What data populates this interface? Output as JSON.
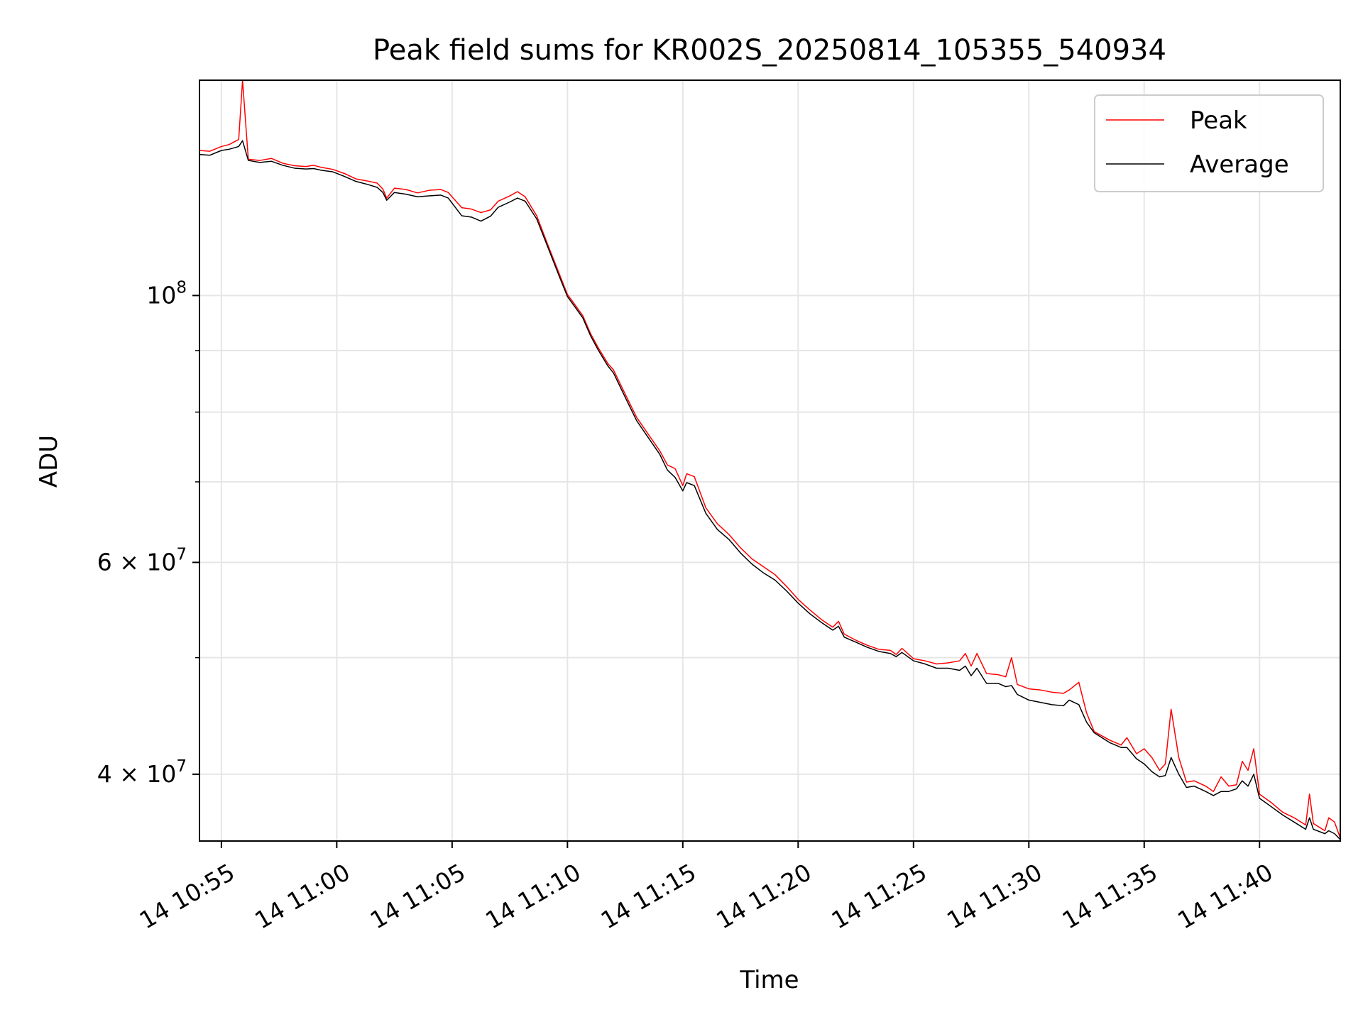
{
  "chart_data": {
    "type": "line",
    "title": "Peak field sums for KR002S_20250814_105355_540934",
    "xlabel": "Time",
    "ylabel": "ADU",
    "y_scale": "log",
    "grid": true,
    "legend_position": "top-right",
    "x_range": [
      "10:54:03",
      "11:43:30"
    ],
    "ylim": [
      35200000,
      151000000
    ],
    "x_ticks": [
      {
        "t": "10:55",
        "label": "14 10:55"
      },
      {
        "t": "11:00",
        "label": "14 11:00"
      },
      {
        "t": "11:05",
        "label": "14 11:05"
      },
      {
        "t": "11:10",
        "label": "14 11:10"
      },
      {
        "t": "11:15",
        "label": "14 11:15"
      },
      {
        "t": "11:20",
        "label": "14 11:20"
      },
      {
        "t": "11:25",
        "label": "14 11:25"
      },
      {
        "t": "11:30",
        "label": "14 11:30"
      },
      {
        "t": "11:35",
        "label": "14 11:35"
      },
      {
        "t": "11:40",
        "label": "14 11:40"
      }
    ],
    "y_ticks": [
      {
        "value": 100000000,
        "base": "10",
        "exp": "8"
      },
      {
        "value": 60000000,
        "mant": "6",
        "base": "10",
        "exp": "7"
      },
      {
        "value": 40000000,
        "mant": "4",
        "base": "10",
        "exp": "7"
      }
    ],
    "y_minor_ticks": [
      50000000,
      70000000,
      80000000,
      90000000
    ],
    "series": [
      {
        "name": "Peak",
        "color": "#ff0000",
        "points": [
          [
            "10:54:03",
            132000000
          ],
          [
            "10:54:30",
            131800000
          ],
          [
            "10:55:00",
            133000000
          ],
          [
            "10:55:20",
            133500000
          ],
          [
            "10:55:45",
            134800000
          ],
          [
            "10:55:55",
            151000000
          ],
          [
            "10:56:10",
            129800000
          ],
          [
            "10:56:40",
            129500000
          ],
          [
            "10:57:10",
            130000000
          ],
          [
            "10:57:40",
            128800000
          ],
          [
            "10:58:10",
            128200000
          ],
          [
            "10:58:40",
            128000000
          ],
          [
            "10:59:00",
            128300000
          ],
          [
            "10:59:20",
            127800000
          ],
          [
            "10:59:50",
            127300000
          ],
          [
            "11:00:20",
            126300000
          ],
          [
            "11:00:50",
            125000000
          ],
          [
            "11:01:20",
            124500000
          ],
          [
            "11:01:45",
            124000000
          ],
          [
            "11:02:00",
            122600000
          ],
          [
            "11:02:10",
            120500000
          ],
          [
            "11:02:30",
            122800000
          ],
          [
            "11:03:00",
            122500000
          ],
          [
            "11:03:30",
            121700000
          ],
          [
            "11:04:00",
            122300000
          ],
          [
            "11:04:30",
            122500000
          ],
          [
            "11:04:50",
            121800000
          ],
          [
            "11:05:10",
            119800000
          ],
          [
            "11:05:25",
            118300000
          ],
          [
            "11:05:50",
            118000000
          ],
          [
            "11:06:15",
            117200000
          ],
          [
            "11:06:40",
            117800000
          ],
          [
            "11:07:00",
            119800000
          ],
          [
            "11:07:30",
            121000000
          ],
          [
            "11:07:50",
            122000000
          ],
          [
            "11:08:10",
            120800000
          ],
          [
            "11:08:40",
            116500000
          ],
          [
            "11:09:10",
            110000000
          ],
          [
            "11:09:40",
            104000000
          ],
          [
            "11:10:00",
            100200000
          ],
          [
            "11:10:20",
            98200000
          ],
          [
            "11:10:40",
            96200000
          ],
          [
            "11:11:00",
            93000000
          ],
          [
            "11:11:20",
            90500000
          ],
          [
            "11:11:45",
            87800000
          ],
          [
            "11:12:00",
            86700000
          ],
          [
            "11:12:20",
            84100000
          ],
          [
            "11:12:40",
            81600000
          ],
          [
            "11:13:00",
            79200000
          ],
          [
            "11:13:30",
            76700000
          ],
          [
            "11:14:00",
            74300000
          ],
          [
            "11:14:20",
            72300000
          ],
          [
            "11:14:40",
            71800000
          ],
          [
            "11:15:00",
            69500000
          ],
          [
            "11:15:10",
            71100000
          ],
          [
            "11:15:30",
            70700000
          ],
          [
            "11:16:00",
            66600000
          ],
          [
            "11:16:30",
            64600000
          ],
          [
            "11:17:00",
            63300000
          ],
          [
            "11:17:30",
            61700000
          ],
          [
            "11:18:00",
            60400000
          ],
          [
            "11:18:30",
            59500000
          ],
          [
            "11:19:00",
            58600000
          ],
          [
            "11:19:30",
            57300000
          ],
          [
            "11:20:00",
            55900000
          ],
          [
            "11:20:30",
            54800000
          ],
          [
            "11:21:00",
            53800000
          ],
          [
            "11:21:30",
            53000000
          ],
          [
            "11:21:45",
            53600000
          ],
          [
            "11:22:00",
            52300000
          ],
          [
            "11:22:30",
            51700000
          ],
          [
            "11:23:00",
            51200000
          ],
          [
            "11:23:30",
            50800000
          ],
          [
            "11:24:00",
            50700000
          ],
          [
            "11:24:15",
            50300000
          ],
          [
            "11:24:30",
            50900000
          ],
          [
            "11:25:00",
            49900000
          ],
          [
            "11:25:30",
            49700000
          ],
          [
            "11:26:00",
            49400000
          ],
          [
            "11:26:30",
            49500000
          ],
          [
            "11:27:00",
            49700000
          ],
          [
            "11:27:15",
            50400000
          ],
          [
            "11:27:30",
            49200000
          ],
          [
            "11:27:45",
            50400000
          ],
          [
            "11:28:10",
            48500000
          ],
          [
            "11:28:40",
            48400000
          ],
          [
            "11:29:00",
            48200000
          ],
          [
            "11:29:15",
            50000000
          ],
          [
            "11:29:30",
            47500000
          ],
          [
            "11:30:00",
            47100000
          ],
          [
            "11:30:30",
            47000000
          ],
          [
            "11:31:00",
            46800000
          ],
          [
            "11:31:30",
            46700000
          ],
          [
            "11:31:45",
            47000000
          ],
          [
            "11:32:10",
            47700000
          ],
          [
            "11:32:30",
            45000000
          ],
          [
            "11:32:50",
            43400000
          ],
          [
            "11:33:30",
            42700000
          ],
          [
            "11:34:00",
            42300000
          ],
          [
            "11:34:15",
            42900000
          ],
          [
            "11:34:40",
            41600000
          ],
          [
            "11:35:00",
            42000000
          ],
          [
            "11:35:20",
            41300000
          ],
          [
            "11:35:40",
            40300000
          ],
          [
            "11:35:55",
            40800000
          ],
          [
            "11:36:10",
            45300000
          ],
          [
            "11:36:30",
            41300000
          ],
          [
            "11:36:50",
            39400000
          ],
          [
            "11:37:10",
            39500000
          ],
          [
            "11:37:40",
            39100000
          ],
          [
            "11:38:00",
            38700000
          ],
          [
            "11:38:20",
            39800000
          ],
          [
            "11:38:40",
            39100000
          ],
          [
            "11:39:00",
            39200000
          ],
          [
            "11:39:15",
            41000000
          ],
          [
            "11:39:30",
            40300000
          ],
          [
            "11:39:45",
            42000000
          ],
          [
            "11:40:00",
            38500000
          ],
          [
            "11:40:30",
            37900000
          ],
          [
            "11:41:00",
            37200000
          ],
          [
            "11:41:30",
            36800000
          ],
          [
            "11:42:00",
            36300000
          ],
          [
            "11:42:10",
            38500000
          ],
          [
            "11:42:20",
            36400000
          ],
          [
            "11:42:50",
            35900000
          ],
          [
            "11:43:00",
            36800000
          ],
          [
            "11:43:15",
            36500000
          ],
          [
            "11:43:30",
            35400000
          ]
        ]
      },
      {
        "name": "Average",
        "color": "#000000",
        "points": [
          [
            "10:54:03",
            131000000
          ],
          [
            "10:54:30",
            130800000
          ],
          [
            "10:55:00",
            132000000
          ],
          [
            "10:55:20",
            132300000
          ],
          [
            "10:55:45",
            133000000
          ],
          [
            "10:55:55",
            134500000
          ],
          [
            "10:56:10",
            129500000
          ],
          [
            "10:56:40",
            129000000
          ],
          [
            "10:57:10",
            129300000
          ],
          [
            "10:57:40",
            128300000
          ],
          [
            "10:58:10",
            127600000
          ],
          [
            "10:58:40",
            127400000
          ],
          [
            "10:59:00",
            127500000
          ],
          [
            "10:59:20",
            127100000
          ],
          [
            "10:59:50",
            126700000
          ],
          [
            "11:00:20",
            125600000
          ],
          [
            "11:00:50",
            124400000
          ],
          [
            "11:01:20",
            123700000
          ],
          [
            "11:01:45",
            123000000
          ],
          [
            "11:02:00",
            121800000
          ],
          [
            "11:02:10",
            120000000
          ],
          [
            "11:02:30",
            121800000
          ],
          [
            "11:03:00",
            121400000
          ],
          [
            "11:03:30",
            120800000
          ],
          [
            "11:04:00",
            121000000
          ],
          [
            "11:04:30",
            121200000
          ],
          [
            "11:04:50",
            120500000
          ],
          [
            "11:05:10",
            118200000
          ],
          [
            "11:05:25",
            116500000
          ],
          [
            "11:05:50",
            116200000
          ],
          [
            "11:06:15",
            115300000
          ],
          [
            "11:06:40",
            116400000
          ],
          [
            "11:07:00",
            118400000
          ],
          [
            "11:07:30",
            119600000
          ],
          [
            "11:07:50",
            120500000
          ],
          [
            "11:08:10",
            119800000
          ],
          [
            "11:08:40",
            115800000
          ],
          [
            "11:09:10",
            109500000
          ],
          [
            "11:09:40",
            103500000
          ],
          [
            "11:10:00",
            99800000
          ],
          [
            "11:10:20",
            97800000
          ],
          [
            "11:10:40",
            95800000
          ],
          [
            "11:11:00",
            92600000
          ],
          [
            "11:11:20",
            90100000
          ],
          [
            "11:11:45",
            87400000
          ],
          [
            "11:12:00",
            86200000
          ],
          [
            "11:12:20",
            83600000
          ],
          [
            "11:12:40",
            81100000
          ],
          [
            "11:13:00",
            78700000
          ],
          [
            "11:13:30",
            76200000
          ],
          [
            "11:14:00",
            73800000
          ],
          [
            "11:14:20",
            71600000
          ],
          [
            "11:14:40",
            70600000
          ],
          [
            "11:15:00",
            68800000
          ],
          [
            "11:15:10",
            69900000
          ],
          [
            "11:15:30",
            69500000
          ],
          [
            "11:16:00",
            65900000
          ],
          [
            "11:16:30",
            63900000
          ],
          [
            "11:17:00",
            62700000
          ],
          [
            "11:17:30",
            61100000
          ],
          [
            "11:18:00",
            59800000
          ],
          [
            "11:18:30",
            58800000
          ],
          [
            "11:19:00",
            58000000
          ],
          [
            "11:19:30",
            56800000
          ],
          [
            "11:20:00",
            55500000
          ],
          [
            "11:20:30",
            54400000
          ],
          [
            "11:21:00",
            53500000
          ],
          [
            "11:21:30",
            52700000
          ],
          [
            "11:21:45",
            53100000
          ],
          [
            "11:22:00",
            52000000
          ],
          [
            "11:22:30",
            51500000
          ],
          [
            "11:23:00",
            51000000
          ],
          [
            "11:23:30",
            50600000
          ],
          [
            "11:24:00",
            50400000
          ],
          [
            "11:24:15",
            50100000
          ],
          [
            "11:24:30",
            50500000
          ],
          [
            "11:25:00",
            49700000
          ],
          [
            "11:25:30",
            49400000
          ],
          [
            "11:26:00",
            49000000
          ],
          [
            "11:26:30",
            49000000
          ],
          [
            "11:27:00",
            48800000
          ],
          [
            "11:27:15",
            49200000
          ],
          [
            "11:27:30",
            48300000
          ],
          [
            "11:27:45",
            49000000
          ],
          [
            "11:28:10",
            47600000
          ],
          [
            "11:28:40",
            47600000
          ],
          [
            "11:29:00",
            47300000
          ],
          [
            "11:29:15",
            47400000
          ],
          [
            "11:29:30",
            46600000
          ],
          [
            "11:30:00",
            46100000
          ],
          [
            "11:30:30",
            45900000
          ],
          [
            "11:31:00",
            45700000
          ],
          [
            "11:31:30",
            45600000
          ],
          [
            "11:31:45",
            46100000
          ],
          [
            "11:32:10",
            45700000
          ],
          [
            "11:32:30",
            44200000
          ],
          [
            "11:32:50",
            43300000
          ],
          [
            "11:33:30",
            42500000
          ],
          [
            "11:34:00",
            42100000
          ],
          [
            "11:34:15",
            42100000
          ],
          [
            "11:34:40",
            41200000
          ],
          [
            "11:35:00",
            40800000
          ],
          [
            "11:35:20",
            40200000
          ],
          [
            "11:35:40",
            39800000
          ],
          [
            "11:35:55",
            39900000
          ],
          [
            "11:36:10",
            41300000
          ],
          [
            "11:36:30",
            40000000
          ],
          [
            "11:36:50",
            39000000
          ],
          [
            "11:37:10",
            39100000
          ],
          [
            "11:37:40",
            38700000
          ],
          [
            "11:38:00",
            38400000
          ],
          [
            "11:38:20",
            38700000
          ],
          [
            "11:38:40",
            38700000
          ],
          [
            "11:39:00",
            38900000
          ],
          [
            "11:39:15",
            39500000
          ],
          [
            "11:39:30",
            39100000
          ],
          [
            "11:39:45",
            40000000
          ],
          [
            "11:40:00",
            38200000
          ],
          [
            "11:40:30",
            37600000
          ],
          [
            "11:41:00",
            37000000
          ],
          [
            "11:41:30",
            36500000
          ],
          [
            "11:42:00",
            36000000
          ],
          [
            "11:42:10",
            36800000
          ],
          [
            "11:42:20",
            36000000
          ],
          [
            "11:42:50",
            35700000
          ],
          [
            "11:43:00",
            35900000
          ],
          [
            "11:43:15",
            35700000
          ],
          [
            "11:43:30",
            35300000
          ]
        ]
      }
    ]
  }
}
